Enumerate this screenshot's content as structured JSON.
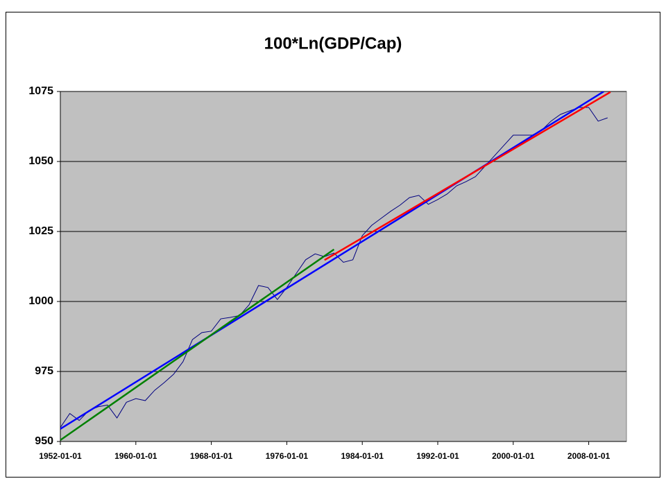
{
  "chart_data": {
    "type": "line",
    "title": "100*Ln(GDP/Cap)",
    "xlim": [
      1952,
      2012
    ],
    "xticks": [
      {
        "value": 1952,
        "label": "1952-01-01"
      },
      {
        "value": 1960,
        "label": "1960-01-01"
      },
      {
        "value": 1968,
        "label": "1968-01-01"
      },
      {
        "value": 1976,
        "label": "1976-01-01"
      },
      {
        "value": 1984,
        "label": "1984-01-01"
      },
      {
        "value": 1992,
        "label": "1992-01-01"
      },
      {
        "value": 2000,
        "label": "2000-01-01"
      },
      {
        "value": 2008,
        "label": "2008-01-01"
      }
    ],
    "ylim": [
      950,
      1075
    ],
    "yticks": [
      950,
      975,
      1000,
      1025,
      1050,
      1075
    ],
    "grid": true,
    "series": [
      {
        "color": "#000080",
        "width": 1,
        "x": [
          1952,
          1953,
          1954,
          1955,
          1956,
          1957,
          1958,
          1959,
          1960,
          1961,
          1962,
          1963,
          1964,
          1965,
          1966,
          1967,
          1968,
          1969,
          1970,
          1971,
          1972,
          1973,
          1974,
          1975,
          1976,
          1977,
          1978,
          1979,
          1980,
          1981,
          1982,
          1983,
          1984,
          1985,
          1986,
          1987,
          1988,
          1989,
          1990,
          1991,
          1992,
          1993,
          1994,
          1995,
          1996,
          1997,
          1998,
          1999,
          2000,
          2001,
          2002,
          2003,
          2004,
          2005,
          2006,
          2007,
          2008,
          2009,
          2010
        ],
        "values": [
          955,
          960,
          957.5,
          961,
          962.4,
          963,
          958.4,
          964,
          965.3,
          964.6,
          968.3,
          971,
          974,
          978.5,
          986.4,
          988.9,
          989.4,
          993.8,
          994.3,
          995,
          998.8,
          1005.7,
          1005,
          1000.7,
          1005,
          1010,
          1014.9,
          1017,
          1016,
          1017.3,
          1014,
          1014.9,
          1023.5,
          1027.2,
          1029.7,
          1032.2,
          1034.4,
          1037.1,
          1037.9,
          1034.7,
          1036.4,
          1038.4,
          1041.3,
          1042.8,
          1044.6,
          1048.3,
          1052,
          1055.7,
          1059.4,
          1059.4,
          1059.4,
          1061.1,
          1064.4,
          1066.8,
          1068.1,
          1069.3,
          1069.3,
          1064.4,
          1065.6
        ]
      },
      {
        "color": "#0000ff",
        "width": 2.5,
        "x": [
          1952,
          2009.6
        ],
        "values": [
          954.5,
          1075
        ]
      },
      {
        "color": "#008000",
        "width": 2.5,
        "x": [
          1952,
          1981
        ],
        "values": [
          950.5,
          1018.6
        ]
      },
      {
        "color": "#ff0000",
        "width": 2.5,
        "x": [
          1980,
          2010.3
        ],
        "values": [
          1014.8,
          1074.8
        ]
      }
    ]
  }
}
